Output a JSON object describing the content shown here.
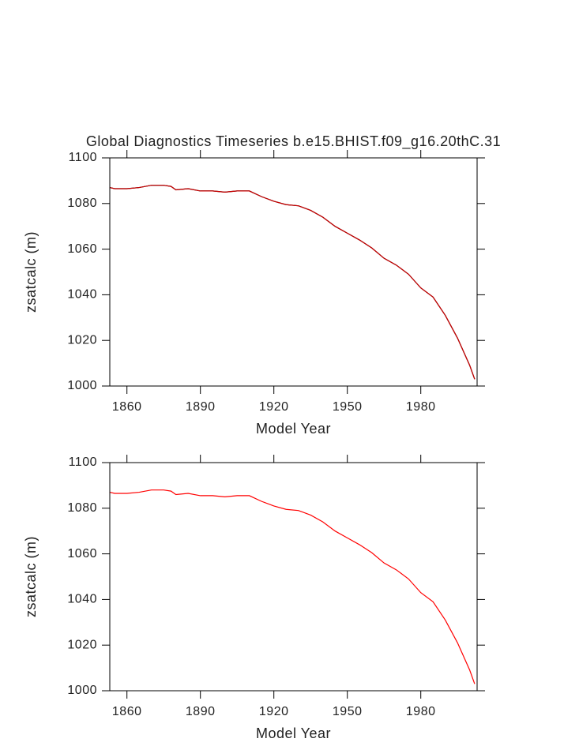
{
  "chart_data": [
    {
      "type": "line",
      "title": "Global Diagnostics Timeseries b.e15.BHIST.f09_g16.20thC.31",
      "xlabel": "Model Year",
      "ylabel": "zsatcalc (m)",
      "x": [
        1853,
        1855,
        1860,
        1865,
        1870,
        1875,
        1878,
        1880,
        1885,
        1890,
        1895,
        1900,
        1905,
        1910,
        1915,
        1920,
        1925,
        1930,
        1935,
        1940,
        1945,
        1950,
        1955,
        1960,
        1965,
        1970,
        1975,
        1980,
        1985,
        1990,
        1995,
        2000,
        2002
      ],
      "series": [
        {
          "color": "#000000",
          "values": [
            1087,
            1086.5,
            1086.5,
            1087,
            1088,
            1088,
            1087.5,
            1086,
            1086.5,
            1085.5,
            1085.5,
            1085,
            1085.5,
            1085.5,
            1083,
            1081,
            1079.5,
            1079,
            1077,
            1074,
            1070,
            1067,
            1064,
            1060.5,
            1056,
            1053,
            1049,
            1043,
            1039,
            1031,
            1021,
            1009,
            1003
          ]
        },
        {
          "color": "#cc0000",
          "values": [
            1087,
            1086.5,
            1086.5,
            1087,
            1088,
            1088,
            1087.5,
            1086,
            1086.5,
            1085.5,
            1085.5,
            1085,
            1085.5,
            1085.5,
            1083,
            1081,
            1079.5,
            1079,
            1077,
            1074,
            1070,
            1067,
            1064,
            1060.5,
            1056,
            1053,
            1049,
            1043,
            1039,
            1031,
            1021,
            1009,
            1003
          ]
        }
      ],
      "xlim": [
        1853,
        2003
      ],
      "xticks": [
        1860,
        1890,
        1920,
        1950,
        1980
      ],
      "ylim": [
        1000,
        1100
      ],
      "yticks": [
        1000,
        1020,
        1040,
        1060,
        1080,
        1100
      ]
    },
    {
      "type": "line",
      "xlabel": "Model Year",
      "ylabel": "zsatcalc (m)",
      "x": [
        1853,
        1855,
        1860,
        1865,
        1870,
        1875,
        1878,
        1880,
        1885,
        1890,
        1895,
        1900,
        1905,
        1910,
        1915,
        1920,
        1925,
        1930,
        1935,
        1940,
        1945,
        1950,
        1955,
        1960,
        1965,
        1970,
        1975,
        1980,
        1985,
        1990,
        1995,
        2000,
        2002
      ],
      "series": [
        {
          "color": "#ff0000",
          "values": [
            1087,
            1086.5,
            1086.5,
            1087,
            1088,
            1088,
            1087.5,
            1086,
            1086.5,
            1085.5,
            1085.5,
            1085,
            1085.5,
            1085.5,
            1083,
            1081,
            1079.5,
            1079,
            1077,
            1074,
            1070,
            1067,
            1064,
            1060.5,
            1056,
            1053,
            1049,
            1043,
            1039,
            1031,
            1021,
            1009,
            1003
          ]
        }
      ],
      "xlim": [
        1853,
        2003
      ],
      "xticks": [
        1860,
        1890,
        1920,
        1950,
        1980
      ],
      "ylim": [
        1000,
        1100
      ],
      "yticks": [
        1000,
        1020,
        1040,
        1060,
        1080,
        1100
      ]
    }
  ]
}
